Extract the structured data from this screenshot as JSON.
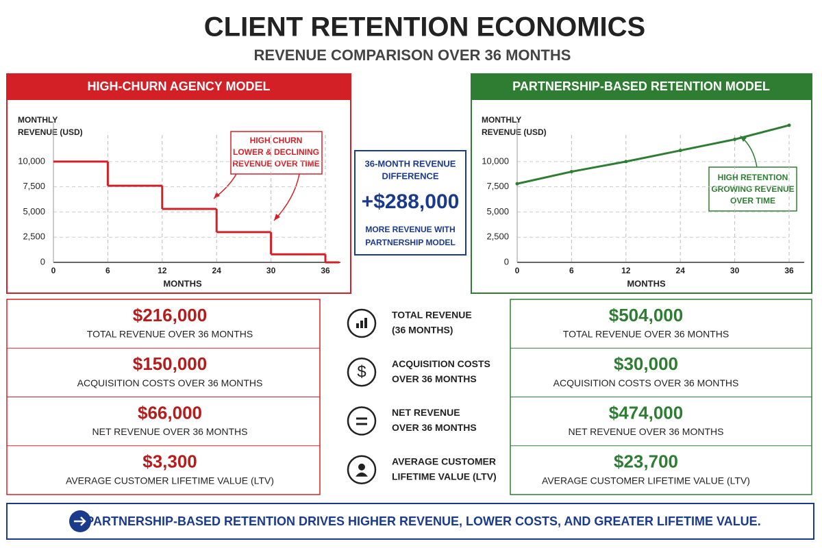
{
  "header": {
    "title": "CLIENT RETENTION ECONOMICS",
    "subtitle": "REVENUE COMPARISON OVER 36 MONTHS"
  },
  "chart_data": [
    {
      "type": "step",
      "panel_title": "HIGH-CHURN AGENCY MODEL",
      "color": "#d32027",
      "y_label": [
        "MONTHLY",
        "REVENUE (USD)"
      ],
      "x_label": "MONTHS",
      "categories": [
        "0",
        "6",
        "12",
        "24",
        "30",
        "36"
      ],
      "values": [
        10000,
        7600,
        5300,
        3000,
        800,
        0
      ],
      "ylim": [
        0,
        14000
      ],
      "yticks": [
        0,
        {
          "value": 2500,
          "label": "2,500"
        },
        {
          "value": 5000,
          "label": "5,000"
        },
        {
          "value": 7500,
          "label": "7,500"
        },
        {
          "value": 10000,
          "label": "10,000"
        }
      ],
      "grid": true,
      "annotation": [
        "HIGH CHURN",
        "LOWER & DECLINING",
        "REVENUE OVER TIME"
      ]
    },
    {
      "type": "line",
      "panel_title": "PARTNERSHIP-BASED RETENTION MODEL",
      "color": "#2e7d32",
      "y_label": [
        "MONTHLY",
        "REVENUE (USD)"
      ],
      "x_label": "MONTHS",
      "categories": [
        "0",
        "6",
        "12",
        "24",
        "30",
        "36"
      ],
      "values": [
        7800,
        9000,
        10000,
        11100,
        12200,
        13600
      ],
      "ylim": [
        0,
        14000
      ],
      "yticks": [
        0,
        {
          "value": 2500,
          "label": "2,500"
        },
        {
          "value": 5000,
          "label": "5,000"
        },
        {
          "value": 7500,
          "label": "7,500"
        },
        {
          "value": 10000,
          "label": "10,000"
        }
      ],
      "grid": true,
      "annotation": [
        "HIGH RETENTION",
        "GROWING REVENUE",
        "OVER TIME"
      ]
    }
  ],
  "difference": {
    "heading": [
      "36-MONTH REVENUE",
      "DIFFERENCE"
    ],
    "amount": "+$288,000",
    "note": [
      "MORE REVENUE WITH",
      "PARTNERSHIP MODEL"
    ]
  },
  "metrics": [
    {
      "left": "$216,000",
      "left_label": "TOTAL REVENUE OVER 36 MONTHS",
      "label": [
        "TOTAL REVENUE",
        "(36 MONTHS)"
      ],
      "right": "$504,000",
      "right_label": "TOTAL REVENUE OVER 36 MONTHS"
    },
    {
      "left": "$150,000",
      "left_label": "ACQUISITION COSTS OVER 36 MONTHS",
      "label": [
        "ACQUISITION COSTS",
        "OVER 36 MONTHS"
      ],
      "right": "$30,000",
      "right_label": "ACQUISITION COSTS OVER 36 MONTHS"
    },
    {
      "left": "$66,000",
      "left_label": "NET REVENUE OVER 36 MONTHS",
      "label": [
        "NET REVENUE",
        "OVER 36 MONTHS"
      ],
      "right": "$474,000",
      "right_label": "NET REVENUE OVER 36 MONTHS"
    },
    {
      "left": "$3,300",
      "left_label": "AVERAGE CUSTOMER LIFETIME VALUE (LTV)",
      "label": [
        "AVERAGE CUSTOMER",
        "LIFETIME VALUE (LTV)"
      ],
      "right": "$23,700",
      "right_label": "AVERAGE CUSTOMER LIFETIME VALUE (LTV)"
    }
  ],
  "footer": "PARTNERSHIP-BASED RETENTION DRIVES HIGHER REVENUE, LOWER COSTS, AND GREATER LIFETIME VALUE."
}
